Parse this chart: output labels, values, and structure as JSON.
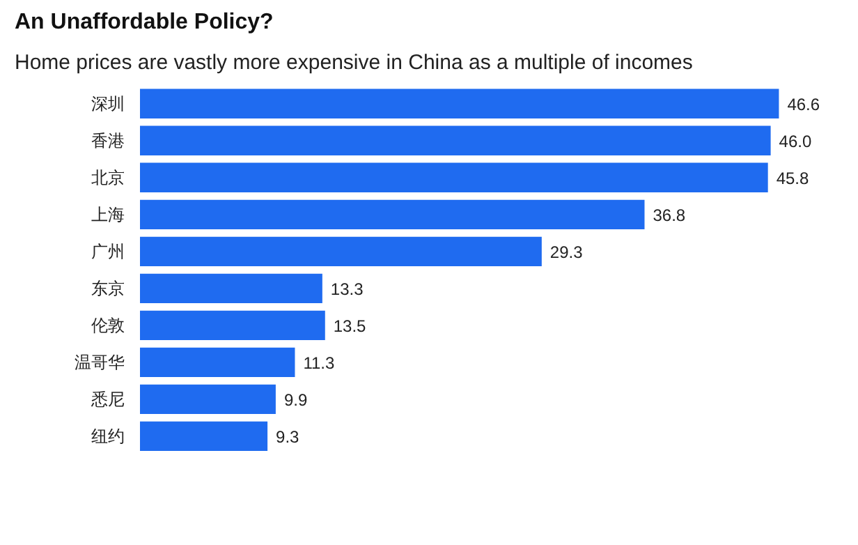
{
  "chart_data": {
    "type": "bar",
    "orientation": "horizontal",
    "title": "An Unaffordable Policy?",
    "subtitle": "Home prices are vastly more expensive in China as a multiple of incomes",
    "categories": [
      "深圳",
      "香港",
      "北京",
      "上海",
      "广州",
      "东京",
      "伦敦",
      "温哥华",
      "悉尼",
      "纽约"
    ],
    "values": [
      46.6,
      46.0,
      45.8,
      36.8,
      29.3,
      13.3,
      13.5,
      11.3,
      9.9,
      9.3
    ],
    "value_labels": [
      "46.6",
      "46.0",
      "45.8",
      "36.8",
      "29.3",
      "13.3",
      "13.5",
      "11.3",
      "9.9",
      "9.3"
    ],
    "color": "#1f6bf0",
    "grid": false
  }
}
